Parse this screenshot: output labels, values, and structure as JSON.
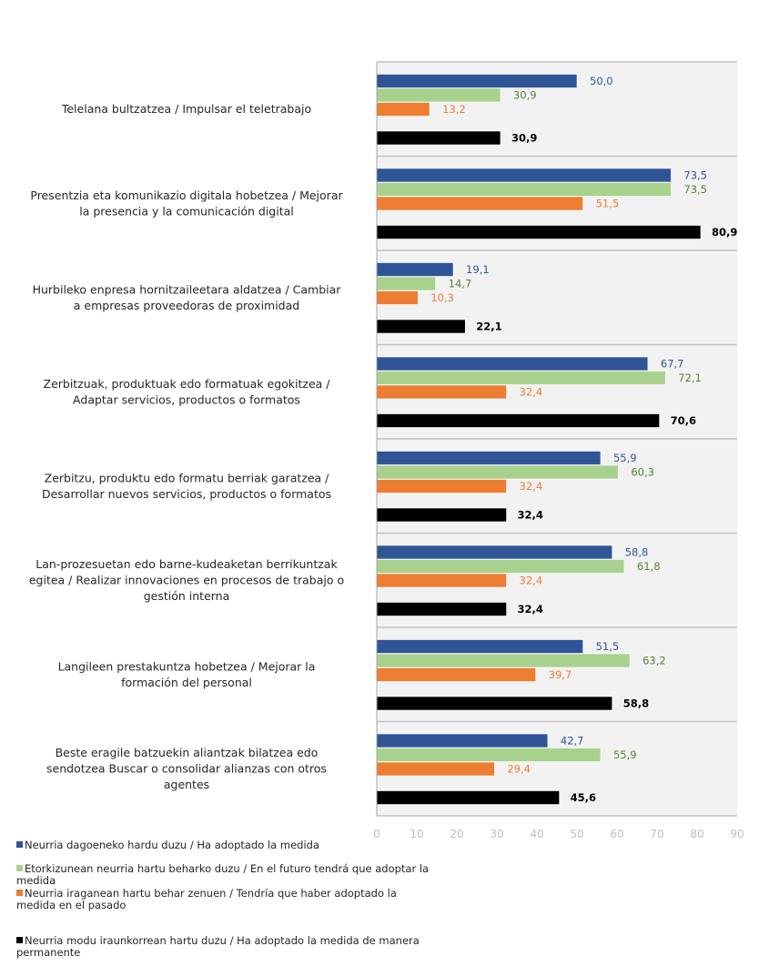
{
  "chart_data": {
    "type": "bar",
    "orientation": "horizontal",
    "title": "",
    "xlabel": "",
    "ylabel": "",
    "xlim": [
      0,
      90
    ],
    "xticks": [
      0,
      10,
      20,
      30,
      40,
      50,
      60,
      70,
      80,
      90
    ],
    "tick_labels": [
      "0",
      "10",
      "20",
      "30",
      "40",
      "50",
      "60",
      "70",
      "80",
      "90"
    ],
    "grid": false,
    "legend_position": "bottom-left",
    "categories": [
      [
        "Telelana bultzatzea  / Impulsar el teletrabajo"
      ],
      [
        "Presentzia eta komunikazio digitala hobetzea  / Mejorar",
        "la presencia y la comunicación digital"
      ],
      [
        "Hurbileko enpresa hornitzaileetara aldatzea / Cambiar",
        "a empresas proveedoras de proximidad"
      ],
      [
        "Zerbitzuak, produktuak edo formatuak egokitzea /",
        "Adaptar servicios, productos o formatos"
      ],
      [
        "Zerbitzu, produktu edo formatu berriak garatzea /",
        "Desarrollar nuevos servicios, productos o formatos"
      ],
      [
        "Lan-prozesuetan edo barne-kudeaketan berrikuntzak",
        "egitea / Realizar innovaciones en procesos de trabajo o",
        "gestión interna"
      ],
      [
        "Langileen prestakuntza hobetzea / Mejorar la",
        "formación del personal"
      ],
      [
        "Beste eragile batzuekin aliantzak bilatzea edo",
        "sendotzea  Buscar o consolidar alianzas con otros",
        "agentes"
      ]
    ],
    "series": [
      {
        "name": "Neurria dagoeneko hardu duzu / Ha adoptado la medida",
        "color": "#2F5597",
        "label_color": "#2F5597",
        "values": [
          50.0,
          73.5,
          19.1,
          67.7,
          55.9,
          58.8,
          51.5,
          42.7
        ],
        "labels": [
          "50,0",
          "73,5",
          "19,1",
          "67,7",
          "55,9",
          "58,8",
          "51,5",
          "42,7"
        ]
      },
      {
        "name": "Etorkizunean neurria hartu beharko duzu / En el futuro tendrá que adoptar la medida",
        "color": "#A9D18E",
        "label_color": "#548235",
        "values": [
          30.9,
          73.5,
          14.7,
          72.1,
          60.3,
          61.8,
          63.2,
          55.9
        ],
        "labels": [
          "30,9",
          "73,5",
          "14,7",
          "72,1",
          "60,3",
          "61,8",
          "63,2",
          "55,9"
        ]
      },
      {
        "name": "Neurria iraganean hartu behar zenuen / Tendría que haber adoptado la medida en el pasado",
        "color": "#ED7D31",
        "label_color": "#ED7D31",
        "values": [
          13.2,
          51.5,
          10.3,
          32.4,
          32.4,
          32.4,
          39.7,
          29.4
        ],
        "labels": [
          "13,2",
          "51,5",
          "10,3",
          "32,4",
          "32,4",
          "32,4",
          "39,7",
          "29,4"
        ]
      },
      {
        "name": "Neurria modu iraunkorrean hartu duzu / Ha adoptado la medida de manera permanente",
        "color": "#000000",
        "label_color": "#000000",
        "values": [
          30.9,
          80.9,
          22.1,
          70.6,
          32.4,
          32.4,
          58.8,
          45.6
        ],
        "labels": [
          "30,9",
          "80,9",
          "22,1",
          "70,6",
          "32,4",
          "32,4",
          "58,8",
          "45,6"
        ]
      }
    ]
  },
  "legend": [
    {
      "lines": [
        "Neurria dagoeneko hardu duzu / Ha adoptado la medida"
      ]
    },
    {
      "lines": [
        "Etorkizunean neurria hartu beharko duzu / En el futuro tendrá que adoptar la",
        "medida"
      ]
    },
    {
      "lines": [
        "Neurria iraganean hartu behar zenuen / Tendría que haber adoptado la",
        "medida en el pasado"
      ]
    },
    {
      "lines": [
        "Neurria modu iraunkorrean hartu duzu / Ha adoptado la medida de manera",
        "permanente"
      ]
    }
  ]
}
